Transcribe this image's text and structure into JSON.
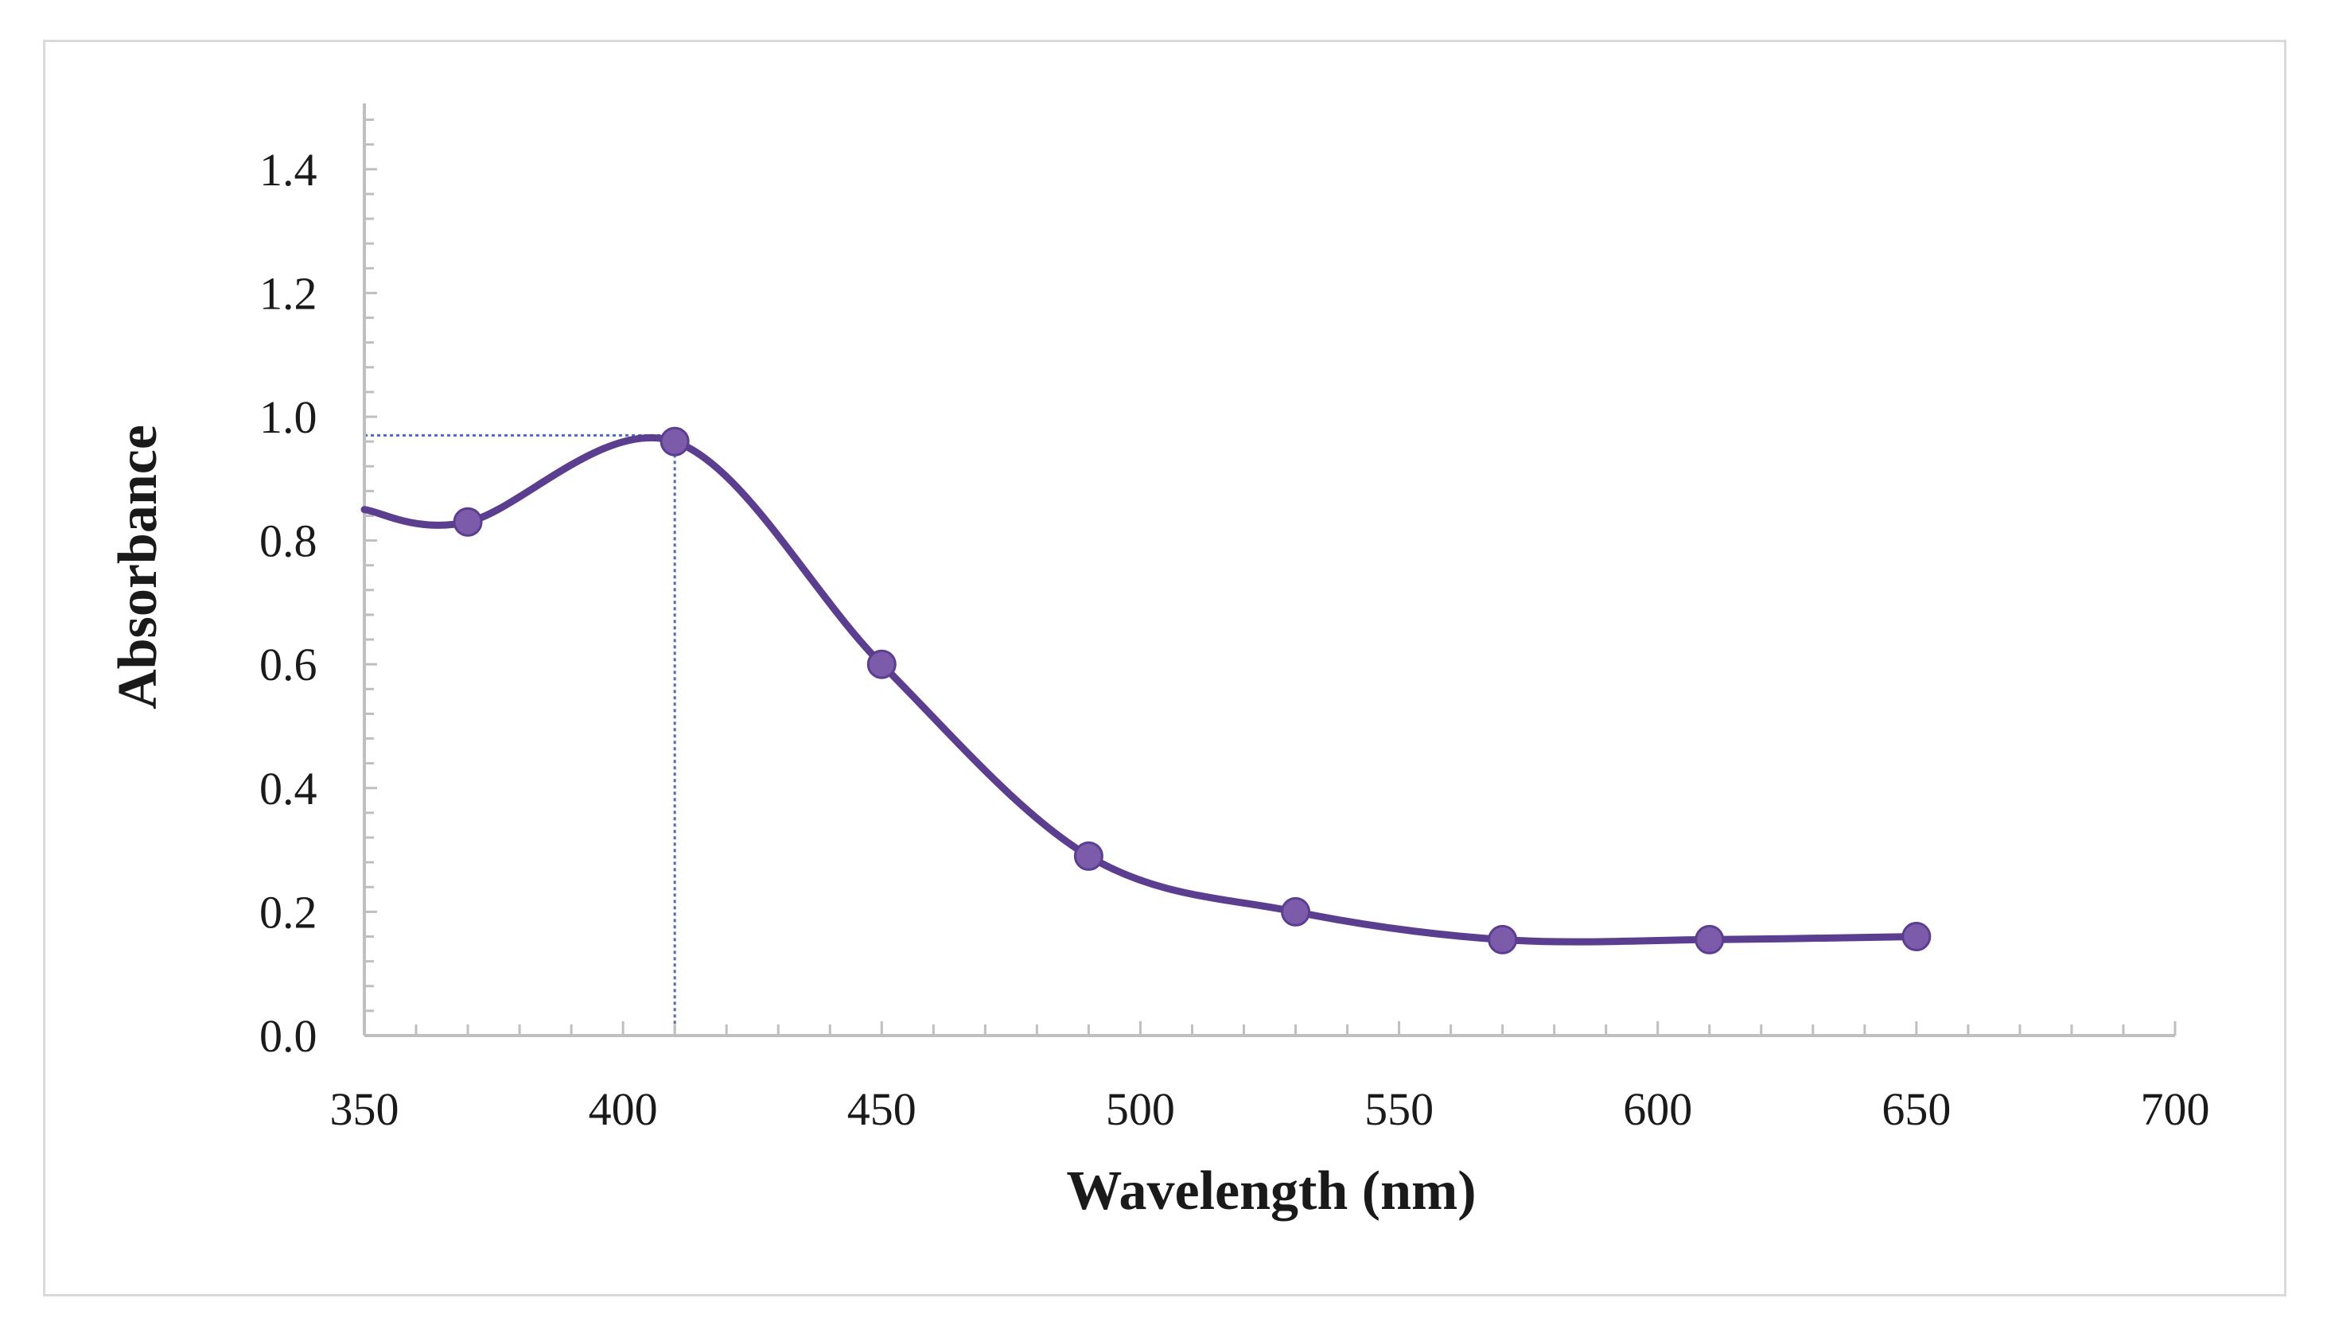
{
  "colors": {
    "series": "#5b3e8f",
    "marker": "#7d5bab",
    "axis": "#bfbfbf",
    "guide": "#4a6fb5",
    "frame": "#d9d9d9"
  },
  "chart_data": {
    "type": "line",
    "title": "",
    "xlabel": "Wavelength (nm)",
    "ylabel": "Absorbance",
    "xlim": [
      350,
      700
    ],
    "ylim": [
      0,
      1.5
    ],
    "x_ticks": [
      "350",
      "400",
      "450",
      "500",
      "550",
      "600",
      "650",
      "700"
    ],
    "y_ticks": [
      "0.0",
      "0.2",
      "0.4",
      "0.6",
      "0.8",
      "1.0",
      "1.2",
      "1.4"
    ],
    "grid": false,
    "smooth": true,
    "series": [
      {
        "name": "Absorbance",
        "x": [
          370,
          410,
          450,
          490,
          530,
          570,
          610,
          650
        ],
        "y": [
          0.83,
          0.96,
          0.6,
          0.29,
          0.2,
          0.155,
          0.155,
          0.16
        ],
        "line_start": {
          "x": 350,
          "y": 0.85
        }
      }
    ],
    "annotations": [
      {
        "type": "peak-guide",
        "x": 410,
        "y": 0.97
      }
    ]
  }
}
